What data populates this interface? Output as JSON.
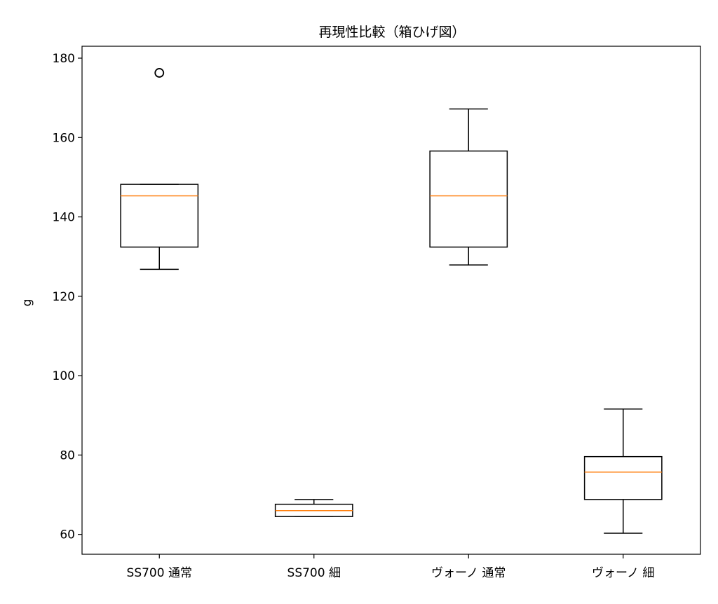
{
  "chart_data": {
    "type": "box",
    "title": "再現性比較（箱ひげ図）",
    "xlabel": "",
    "ylabel": "g",
    "ylim": [
      55,
      183
    ],
    "yticks": [
      60,
      80,
      100,
      120,
      140,
      160,
      180
    ],
    "grid": false,
    "categories": [
      "SS700 通常",
      "SS700 細",
      "ヴォーノ 通常",
      "ヴォーノ 細"
    ],
    "boxes": [
      {
        "category": "SS700 通常",
        "whisker_low": 126.8,
        "q1": 132.4,
        "median": 145.3,
        "q3": 148.2,
        "whisker_high": 148.2,
        "outliers": [
          176.3
        ]
      },
      {
        "category": "SS700 細",
        "whisker_low": 64.5,
        "q1": 64.5,
        "median": 66.0,
        "q3": 67.6,
        "whisker_high": 68.8,
        "outliers": []
      },
      {
        "category": "ヴォーノ 通常",
        "whisker_low": 127.9,
        "q1": 132.4,
        "median": 145.3,
        "q3": 156.6,
        "whisker_high": 167.2,
        "outliers": []
      },
      {
        "category": "ヴォーノ 細",
        "whisker_low": 60.3,
        "q1": 68.8,
        "median": 75.7,
        "q3": 79.6,
        "whisker_high": 91.6,
        "outliers": []
      }
    ],
    "colors": {
      "box": "#000000",
      "median": "#ff7f0e",
      "outlier": "#000000"
    }
  }
}
